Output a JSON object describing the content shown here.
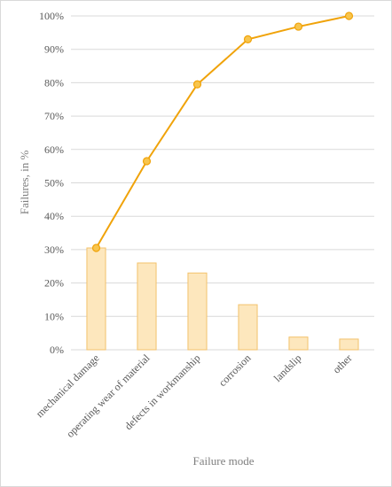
{
  "chart_data": {
    "type": "pareto",
    "xlabel": "Failure mode",
    "ylabel": "Failures, in  %",
    "ylim": [
      0,
      100
    ],
    "yticks": [
      "0%",
      "10%",
      "20%",
      "30%",
      "40%",
      "50%",
      "60%",
      "70%",
      "80%",
      "90%",
      "100%"
    ],
    "categories": [
      "mechanical damage",
      "operating wear of material",
      "defects in workmanship",
      "corrosion",
      "landslip",
      "other"
    ],
    "series": [
      {
        "type": "bar",
        "values": [
          30.5,
          26,
          23,
          13.5,
          3.8,
          3.2
        ]
      },
      {
        "type": "line",
        "values": [
          30.5,
          56.5,
          79.5,
          93,
          96.8,
          100
        ]
      }
    ],
    "grid": true,
    "colors": {
      "bar_fill": "#fde7bd",
      "bar_stroke": "#f3c26c",
      "line": "#f0a30a",
      "marker_fill": "#f8c54d",
      "grid": "#d9d9d9"
    }
  }
}
